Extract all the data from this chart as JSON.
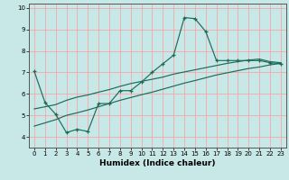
{
  "xlabel": "Humidex (Indice chaleur)",
  "xlim": [
    -0.5,
    23.5
  ],
  "ylim": [
    3.5,
    10.2
  ],
  "xticks": [
    0,
    1,
    2,
    3,
    4,
    5,
    6,
    7,
    8,
    9,
    10,
    11,
    12,
    13,
    14,
    15,
    16,
    17,
    18,
    19,
    20,
    21,
    22,
    23
  ],
  "yticks": [
    4,
    5,
    6,
    7,
    8,
    9,
    10
  ],
  "bg_color": "#c8e8e8",
  "line_color": "#1a6b5a",
  "grid_color": "#ff9999",
  "line1_x": [
    0,
    1,
    2,
    3,
    4,
    5,
    6,
    7,
    8,
    9,
    10,
    11,
    12,
    13,
    14,
    15,
    16,
    17,
    18,
    19,
    20,
    21,
    22,
    23
  ],
  "line1_y": [
    7.05,
    5.6,
    5.05,
    4.2,
    4.35,
    4.25,
    5.55,
    5.55,
    6.15,
    6.15,
    6.55,
    7.0,
    7.4,
    7.8,
    9.55,
    9.5,
    8.9,
    7.55,
    7.55,
    7.55,
    7.55,
    7.55,
    7.45,
    7.4
  ],
  "line2_x": [
    0,
    1,
    2,
    3,
    4,
    5,
    6,
    7,
    8,
    9,
    10,
    11,
    12,
    13,
    14,
    15,
    16,
    17,
    18,
    19,
    20,
    21,
    22,
    23
  ],
  "line2_y": [
    5.3,
    5.4,
    5.5,
    5.7,
    5.85,
    5.95,
    6.08,
    6.2,
    6.35,
    6.48,
    6.58,
    6.68,
    6.78,
    6.92,
    7.02,
    7.12,
    7.22,
    7.32,
    7.42,
    7.5,
    7.57,
    7.62,
    7.5,
    7.45
  ],
  "line3_x": [
    0,
    1,
    2,
    3,
    4,
    5,
    6,
    7,
    8,
    9,
    10,
    11,
    12,
    13,
    14,
    15,
    16,
    17,
    18,
    19,
    20,
    21,
    22,
    23
  ],
  "line3_y": [
    4.5,
    4.65,
    4.8,
    5.0,
    5.12,
    5.25,
    5.4,
    5.55,
    5.7,
    5.83,
    5.96,
    6.08,
    6.22,
    6.36,
    6.5,
    6.62,
    6.75,
    6.88,
    6.98,
    7.08,
    7.18,
    7.25,
    7.35,
    7.42
  ]
}
